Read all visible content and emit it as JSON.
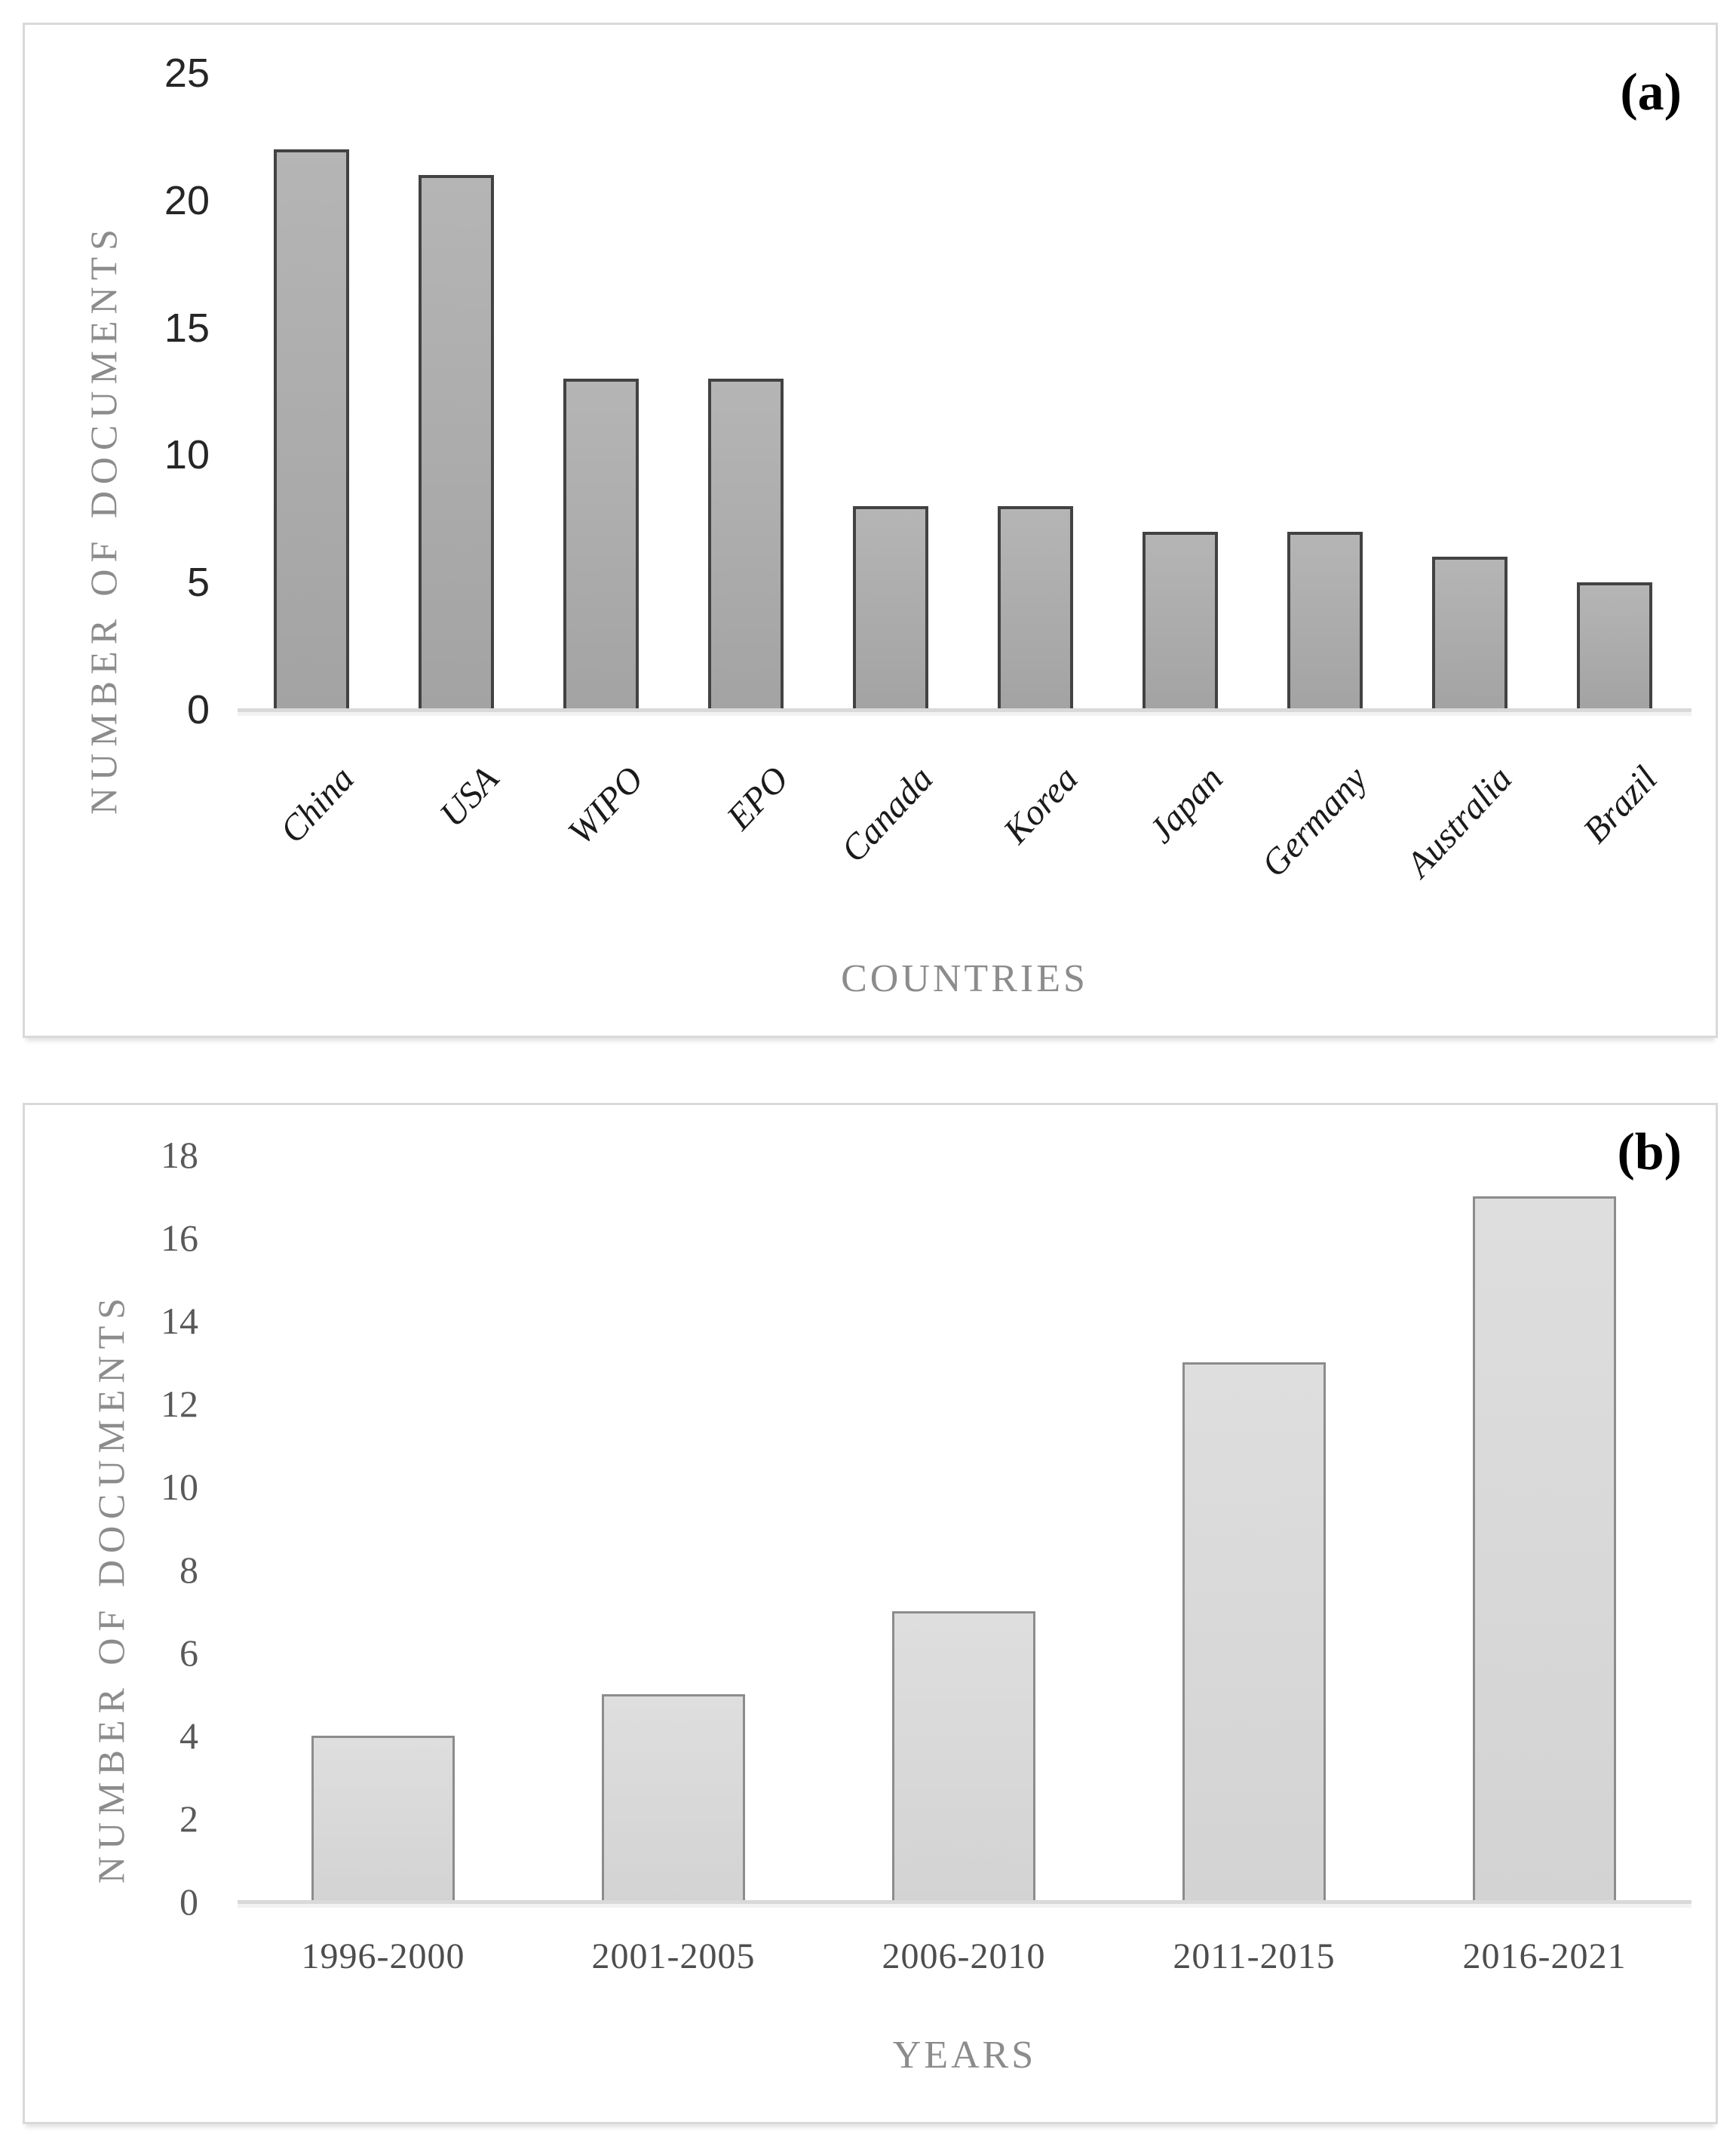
{
  "figure": {
    "background": "#ffffff",
    "panel_border_color": "#d9d9d9",
    "axis_line_color": "#d9d9d9",
    "axis_title_color": "#8c8c8c",
    "tag_color": "#000000"
  },
  "chart_data": [
    {
      "type": "bar",
      "panel_tag": "(a)",
      "title": "",
      "categories": [
        "China",
        "USA",
        "WIPO",
        "EPO",
        "Canada",
        "Korea",
        "Japan",
        "Germany",
        "Australia",
        "Brazil"
      ],
      "values": [
        22,
        21,
        13,
        13,
        8,
        8,
        7,
        7,
        6,
        5
      ],
      "xlabel": "COUNTRIES",
      "ylabel": "NUMBER OF DOCUMENTS",
      "ylim": [
        0,
        25
      ],
      "ytick_step": 5,
      "ytick_labels": [
        "0",
        "5",
        "10",
        "15",
        "20",
        "25"
      ],
      "grid": false,
      "legend": "none",
      "bar_fill_top": "#b5b5b5",
      "bar_fill_bottom": "#a3a3a3",
      "bar_border": "#424242",
      "ytick_color": "#262626",
      "xtick_color": "#1a1a1a"
    },
    {
      "type": "bar",
      "panel_tag": "(b)",
      "title": "",
      "categories": [
        "1996-2000",
        "2001-2005",
        "2006-2010",
        "2011-2015",
        "2016-2021"
      ],
      "values": [
        4,
        5,
        7,
        13,
        17
      ],
      "xlabel": "YEARS",
      "ylabel": "NUMBER OF DOCUMENTS",
      "ylim": [
        0,
        18
      ],
      "ytick_step": 2,
      "ytick_labels": [
        "0",
        "2",
        "4",
        "6",
        "8",
        "10",
        "12",
        "14",
        "16",
        "18"
      ],
      "grid": false,
      "legend": "none",
      "bar_fill_top": "#dedede",
      "bar_fill_bottom": "#d3d3d3",
      "bar_border": "#8c8c8c",
      "ytick_color": "#595959",
      "xtick_color": "#4d4d4d"
    }
  ]
}
